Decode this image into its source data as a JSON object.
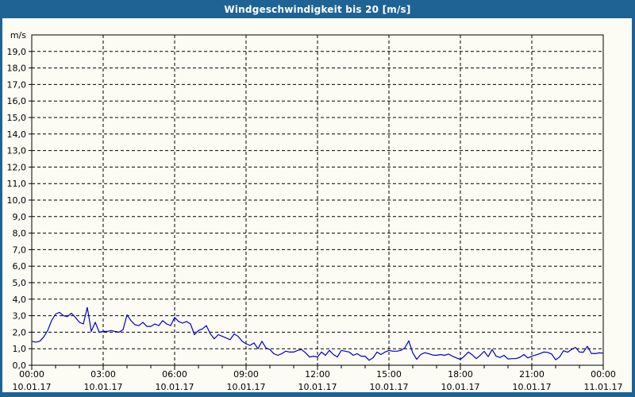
{
  "window": {
    "title": "Windgeschwindigkeit bis 20 [m/s]"
  },
  "colors": {
    "frame_blue": "#1f6395",
    "panel_bg": "#fcfcf5",
    "line_blue": "#0000cc",
    "grid_black": "#000000",
    "title_text": "#ffffff"
  },
  "chart_data": {
    "type": "line",
    "title": "Windgeschwindigkeit bis 20 [m/s]",
    "ylabel": "m/s",
    "xlabel": "",
    "ylim": [
      0,
      20
    ],
    "ytick_step": 1,
    "grid": "dashed",
    "legend": "none",
    "ytick_labels": [
      "0,0",
      "1,0",
      "2,0",
      "3,0",
      "4,0",
      "5,0",
      "6,0",
      "7,0",
      "8,0",
      "9,0",
      "10,0",
      "11,0",
      "12,0",
      "13,0",
      "14,0",
      "15,0",
      "16,0",
      "17,0",
      "18,0",
      "19,0"
    ],
    "xtick_labels": [
      {
        "time": "00:00",
        "date": "10.01.17"
      },
      {
        "time": "03:00",
        "date": "10.01.17"
      },
      {
        "time": "06:00",
        "date": "10.01.17"
      },
      {
        "time": "09:00",
        "date": "10.01.17"
      },
      {
        "time": "12:00",
        "date": "10.01.17"
      },
      {
        "time": "15:00",
        "date": "10.01.17"
      },
      {
        "time": "18:00",
        "date": "10.01.17"
      },
      {
        "time": "21:00",
        "date": "10.01.17"
      },
      {
        "time": "00:00",
        "date": "11.01.17"
      }
    ],
    "x_hours_span": 24,
    "minor_tick_hours": 1,
    "major_tick_hours": 3,
    "sample_interval_minutes": 10,
    "series": [
      {
        "name": "Windgeschwindigkeit",
        "values": [
          1.45,
          1.4,
          1.45,
          1.7,
          2.1,
          2.7,
          3.1,
          3.2,
          3.0,
          2.95,
          3.15,
          2.9,
          2.6,
          2.5,
          3.5,
          2.05,
          2.6,
          2.0,
          2.05,
          2.05,
          2.1,
          2.05,
          2.0,
          2.15,
          3.05,
          2.7,
          2.45,
          2.4,
          2.6,
          2.35,
          2.35,
          2.5,
          2.4,
          2.7,
          2.5,
          2.4,
          2.9,
          2.65,
          2.55,
          2.65,
          2.5,
          1.85,
          2.1,
          2.2,
          2.4,
          1.9,
          1.6,
          1.85,
          1.75,
          1.65,
          1.55,
          1.9,
          1.75,
          1.45,
          1.3,
          1.2,
          1.35,
          1.0,
          1.45,
          1.05,
          0.95,
          0.7,
          0.6,
          0.7,
          0.85,
          0.8,
          0.8,
          0.9,
          0.95,
          0.75,
          0.5,
          0.55,
          0.5,
          0.8,
          0.6,
          0.9,
          0.65,
          0.5,
          0.9,
          0.85,
          0.8,
          0.6,
          0.7,
          0.55,
          0.55,
          0.3,
          0.45,
          0.8,
          0.65,
          0.8,
          0.9,
          0.85,
          0.85,
          0.9,
          1.05,
          1.48,
          0.75,
          0.36,
          0.65,
          0.76,
          0.7,
          0.62,
          0.6,
          0.65,
          0.6,
          0.68,
          0.55,
          0.44,
          0.35,
          0.55,
          0.8,
          0.63,
          0.4,
          0.6,
          0.84,
          0.52,
          0.95,
          0.55,
          0.47,
          0.6,
          0.38,
          0.4,
          0.4,
          0.48,
          0.65,
          0.44,
          0.55,
          0.62,
          0.7,
          0.8,
          0.78,
          0.68,
          0.33,
          0.5,
          0.88,
          0.79,
          0.95,
          1.08,
          0.8,
          0.79,
          1.15,
          0.72,
          0.7,
          0.75,
          0.73
        ]
      }
    ]
  }
}
